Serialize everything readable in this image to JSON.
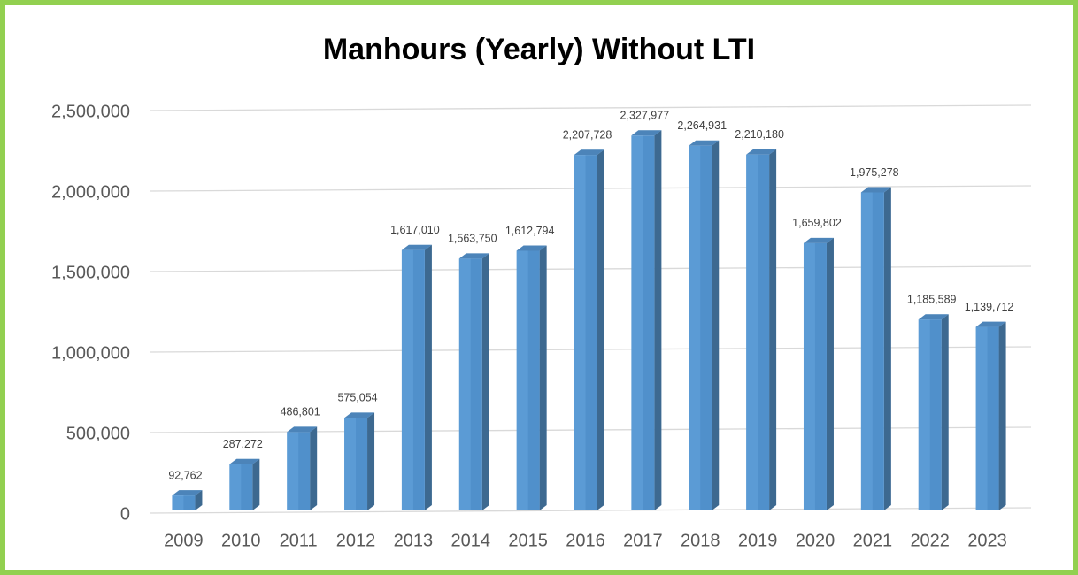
{
  "chart_data": {
    "type": "bar3d",
    "title": "Manhours (Yearly) Without LTI",
    "categories": [
      "2009",
      "2010",
      "2011",
      "2012",
      "2013",
      "2014",
      "2015",
      "2016",
      "2017",
      "2018",
      "2019",
      "2020",
      "2021",
      "2022",
      "2023"
    ],
    "values": [
      92762,
      287272,
      486801,
      575054,
      1617010,
      1563750,
      1612794,
      2207728,
      2327977,
      2264931,
      2210180,
      1659802,
      1975278,
      1185589,
      1139712
    ],
    "value_labels": [
      "92,762",
      "287,272",
      "486,801",
      "575,054",
      "1,617,010",
      "1,563,750",
      "1,612,794",
      "2,207,728",
      "2,327,977",
      "2,264,931",
      "2,210,180",
      "1,659,802",
      "1,975,278",
      "1,185,589",
      "1,139,712"
    ],
    "color": "#5b9bd5",
    "ylim": [
      0,
      2500000
    ],
    "yticks": [
      0,
      {
        "value": 500000,
        "label": "500,000"
      },
      {
        "value": 1000000,
        "label": "1,000,000"
      },
      {
        "value": 1500000,
        "label": "1,500,000"
      },
      {
        "value": 2000000,
        "label": "2,000,000"
      },
      {
        "value": 2500000,
        "label": "2,500,000"
      }
    ],
    "grid": true
  }
}
